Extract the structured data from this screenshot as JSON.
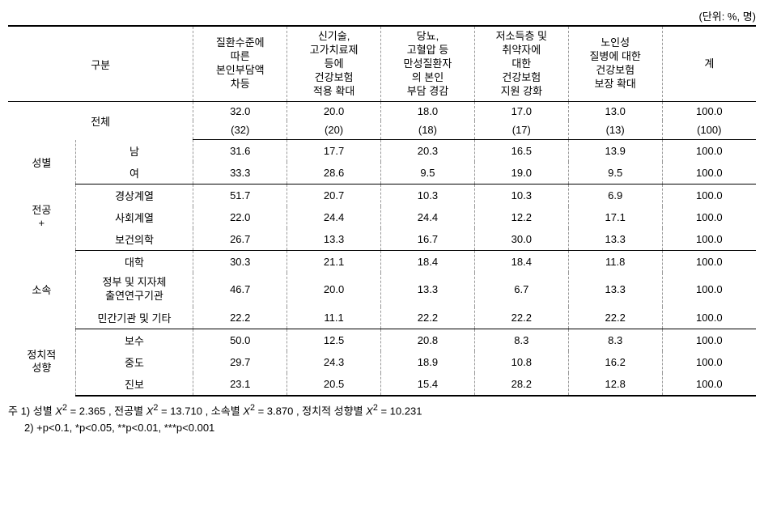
{
  "unit_label": "(단위: %, 명)",
  "headers": {
    "category": "구분",
    "col1": "질환수준에\n따른\n본인부담액\n차등",
    "col2": "신기술,\n고가치료제\n등에\n건강보험\n적용 확대",
    "col3": "당뇨,\n고혈압 등\n만성질환자\n의 본인\n부담 경감",
    "col4": "저소득층 및\n취약자에\n대한\n건강보험\n지원 강화",
    "col5": "노인성\n질병에 대한\n건강보험\n보장 확대",
    "col6": "계"
  },
  "total_label": "전체",
  "total_row1": [
    "32.0",
    "20.0",
    "18.0",
    "17.0",
    "13.0",
    "100.0"
  ],
  "total_row2": [
    "(32)",
    "(20)",
    "(18)",
    "(17)",
    "(13)",
    "(100)"
  ],
  "groups": [
    {
      "name": "성별",
      "rows": [
        {
          "label": "남",
          "values": [
            "31.6",
            "17.7",
            "20.3",
            "16.5",
            "13.9",
            "100.0"
          ]
        },
        {
          "label": "여",
          "values": [
            "33.3",
            "28.6",
            "9.5",
            "19.0",
            "9.5",
            "100.0"
          ]
        }
      ]
    },
    {
      "name": "전공\n+",
      "rows": [
        {
          "label": "경상계열",
          "values": [
            "51.7",
            "20.7",
            "10.3",
            "10.3",
            "6.9",
            "100.0"
          ]
        },
        {
          "label": "사회계열",
          "values": [
            "22.0",
            "24.4",
            "24.4",
            "12.2",
            "17.1",
            "100.0"
          ]
        },
        {
          "label": "보건의학",
          "values": [
            "26.7",
            "13.3",
            "16.7",
            "30.0",
            "13.3",
            "100.0"
          ]
        }
      ]
    },
    {
      "name": "소속",
      "rows": [
        {
          "label": "대학",
          "values": [
            "30.3",
            "21.1",
            "18.4",
            "18.4",
            "11.8",
            "100.0"
          ]
        },
        {
          "label": "정부 및 지자체\n출연연구기관",
          "values": [
            "46.7",
            "20.0",
            "13.3",
            "6.7",
            "13.3",
            "100.0"
          ]
        },
        {
          "label": "민간기관 및 기타",
          "values": [
            "22.2",
            "11.1",
            "22.2",
            "22.2",
            "22.2",
            "100.0"
          ]
        }
      ]
    },
    {
      "name": "정치적\n성향",
      "rows": [
        {
          "label": "보수",
          "values": [
            "50.0",
            "12.5",
            "20.8",
            "8.3",
            "8.3",
            "100.0"
          ]
        },
        {
          "label": "중도",
          "values": [
            "29.7",
            "24.3",
            "18.9",
            "10.8",
            "16.2",
            "100.0"
          ]
        },
        {
          "label": "진보",
          "values": [
            "23.1",
            "20.5",
            "15.4",
            "28.2",
            "12.8",
            "100.0"
          ]
        }
      ]
    }
  ],
  "footnotes": {
    "note1_prefix": "주 1) 성별 ",
    "note1_chi1": " = 2.365 , 전공별 ",
    "note1_chi2": " = 13.710 , 소속별 ",
    "note1_chi3": " = 3.870 , 정치적 성향별 ",
    "note1_chi4": " = 10.231",
    "chi_symbol": "X",
    "chi_sup": "2",
    "note2": "2) +p<0.1, *p<0.05, **p<0.01, ***p<0.001"
  },
  "styling": {
    "font_size_pt": 13,
    "border_color": "#000000",
    "dashed_color": "#999999",
    "background": "#ffffff",
    "text_color": "#000000"
  }
}
